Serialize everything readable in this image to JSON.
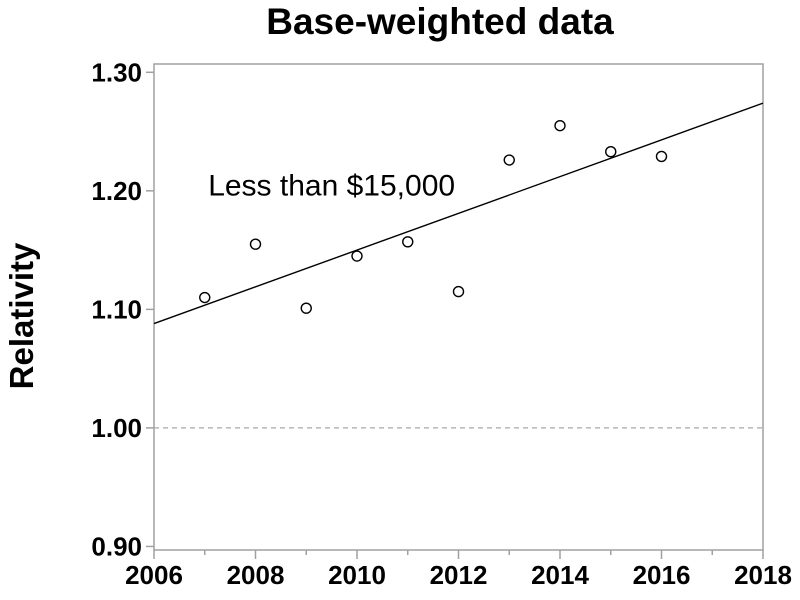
{
  "chart_data": {
    "type": "scatter",
    "title": "Base-weighted data",
    "ylabel": "Relativity",
    "xlabel": "",
    "annotation": {
      "text": "Less than $15,000",
      "x": 2009.5,
      "y": 1.204
    },
    "xlim": [
      2006,
      2018
    ],
    "ylim": [
      0.897,
      1.307
    ],
    "x_ticks": [
      2006,
      2008,
      2010,
      2012,
      2014,
      2016,
      2018
    ],
    "x_minor_ticks": [
      2007,
      2009,
      2011,
      2013,
      2015,
      2017
    ],
    "y_ticks": [
      {
        "value": 0.9,
        "label": "0.90"
      },
      {
        "value": 1.0,
        "label": "1.00"
      },
      {
        "value": 1.1,
        "label": "1.10"
      },
      {
        "value": 1.2,
        "label": "1.20"
      },
      {
        "value": 1.3,
        "label": "1.30"
      }
    ],
    "reference_line": {
      "y": 1.0,
      "style": "dashed"
    },
    "trend_line": {
      "x1": 2006,
      "y1": 1.088,
      "x2": 2018,
      "y2": 1.274
    },
    "series": [
      {
        "name": "Less than $15,000",
        "marker": "open-circle",
        "points": [
          {
            "x": 2007,
            "y": 1.11
          },
          {
            "x": 2008,
            "y": 1.155
          },
          {
            "x": 2009,
            "y": 1.101
          },
          {
            "x": 2010,
            "y": 1.145
          },
          {
            "x": 2011,
            "y": 1.157
          },
          {
            "x": 2012,
            "y": 1.115
          },
          {
            "x": 2013,
            "y": 1.226
          },
          {
            "x": 2014,
            "y": 1.255
          },
          {
            "x": 2015,
            "y": 1.233
          },
          {
            "x": 2016,
            "y": 1.229
          }
        ]
      }
    ],
    "grid": false,
    "legend": "none",
    "colors": {
      "axis": "#a0a0a0",
      "reference": "#a8a8a8",
      "marker": "#000000",
      "trend": "#000000",
      "text": "#000000",
      "background": "#ffffff"
    }
  }
}
